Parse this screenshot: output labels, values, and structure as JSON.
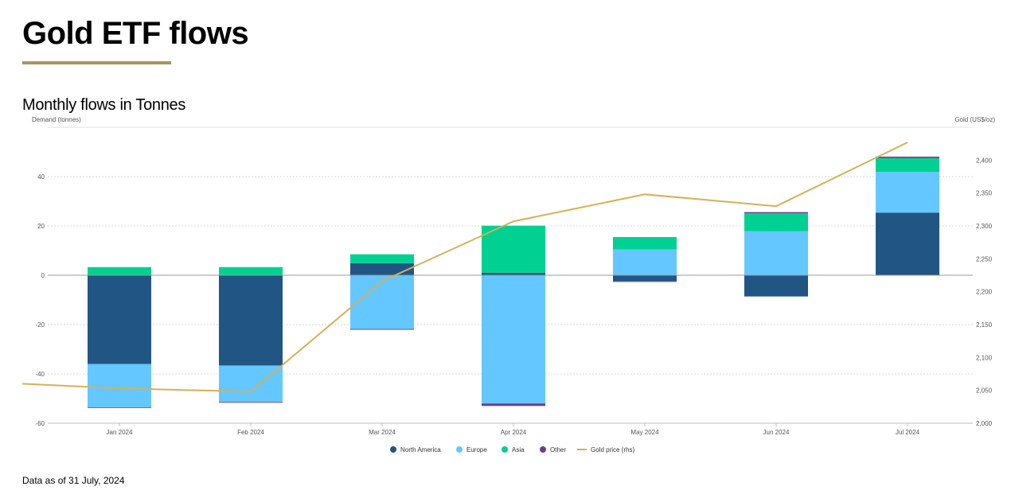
{
  "page": {
    "title": "Gold ETF flows",
    "accent_color": "#a89463",
    "footnote": "Data as of 31 July, 2024"
  },
  "chart_data": {
    "type": "bar",
    "stacked": true,
    "title": "Monthly flows in Tonnes",
    "ylabel": "Demand (tonnes)",
    "y2label": "Gold (US$/oz)",
    "categories": [
      "Jan 2024",
      "Feb 2024",
      "Mar 2024",
      "Apr 2024",
      "May 2024",
      "Jun 2024",
      "Jul 2024"
    ],
    "ylim": [
      -60,
      60
    ],
    "yticks": [
      -60,
      -40,
      -20,
      0,
      20,
      40
    ],
    "ytick_labels": [
      "-60",
      "-40",
      "-20",
      "0",
      "20",
      "40"
    ],
    "y2lim": [
      2000,
      2450
    ],
    "y2ticks": [
      2000,
      2050,
      2100,
      2150,
      2200,
      2250,
      2300,
      2350,
      2400
    ],
    "y2tick_labels": [
      "2,000",
      "2,050",
      "2,100",
      "2,150",
      "2,200",
      "2,250",
      "2,300",
      "2,350",
      "2,400"
    ],
    "grid": true,
    "series": [
      {
        "name": "North America",
        "color": "#215583",
        "values": [
          -36.0,
          -36.6,
          4.9,
          1.0,
          -2.5,
          -8.6,
          25.4
        ]
      },
      {
        "name": "Europe",
        "color": "#64c7ff",
        "values": [
          -17.5,
          -14.8,
          -21.8,
          -52.0,
          10.5,
          17.9,
          16.5
        ]
      },
      {
        "name": "Asia",
        "color": "#00d192",
        "values": [
          3.3,
          3.3,
          3.6,
          19.1,
          5.0,
          7.2,
          5.6
        ]
      },
      {
        "name": "Other",
        "color": "#6b3d8e",
        "values": [
          -0.3,
          -0.3,
          -0.3,
          -1.0,
          -0.2,
          0.5,
          0.6
        ]
      }
    ],
    "line_series": {
      "name": "Gold price (rhs)",
      "color": "#d6b056",
      "axis": "right",
      "start_value": 2060,
      "values": [
        2053,
        2048,
        2216,
        2307,
        2348,
        2330,
        2427
      ]
    },
    "legend_position": "bottom-center"
  }
}
